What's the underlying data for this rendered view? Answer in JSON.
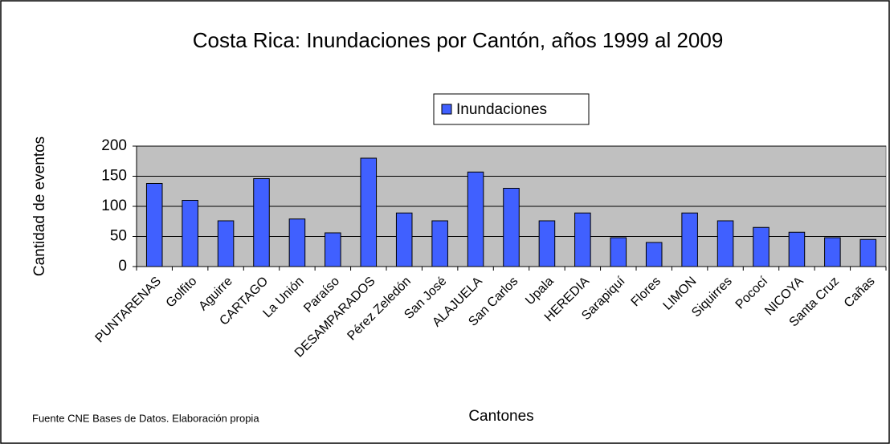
{
  "chart_data": {
    "type": "bar",
    "title": "Costa Rica: Inundaciones por Cantón, años 1999 al 2009",
    "x_label": "Cantones",
    "y_label": "Cantidad de eventos",
    "source": "Fuente CNE Bases de Datos. Elaboración propia",
    "categories": [
      "PUNTARENAS",
      "Golfito",
      "Aguirre",
      "CARTAGO",
      "La Unión",
      "Paraíso",
      "DESAMPARADOS",
      "Pérez Zeledón",
      "San José",
      "ALAJUELA",
      "San Carlos",
      "Upala",
      "HEREDIA",
      "Sarapiquí",
      "Flores",
      "LIMON",
      "Siquirres",
      "Pococí",
      "NICOYA",
      "Santa Cruz",
      "Cañas"
    ],
    "series": [
      {
        "name": "Inundaciones",
        "color": "#4060ff",
        "values": [
          138,
          110,
          76,
          146,
          79,
          56,
          180,
          89,
          76,
          157,
          130,
          76,
          89,
          48,
          40,
          89,
          76,
          65,
          57,
          48,
          45
        ]
      }
    ],
    "ylim": [
      0,
      200
    ],
    "yticks": [
      0,
      50,
      100,
      150,
      200
    ],
    "grid": true,
    "legend": "top"
  }
}
